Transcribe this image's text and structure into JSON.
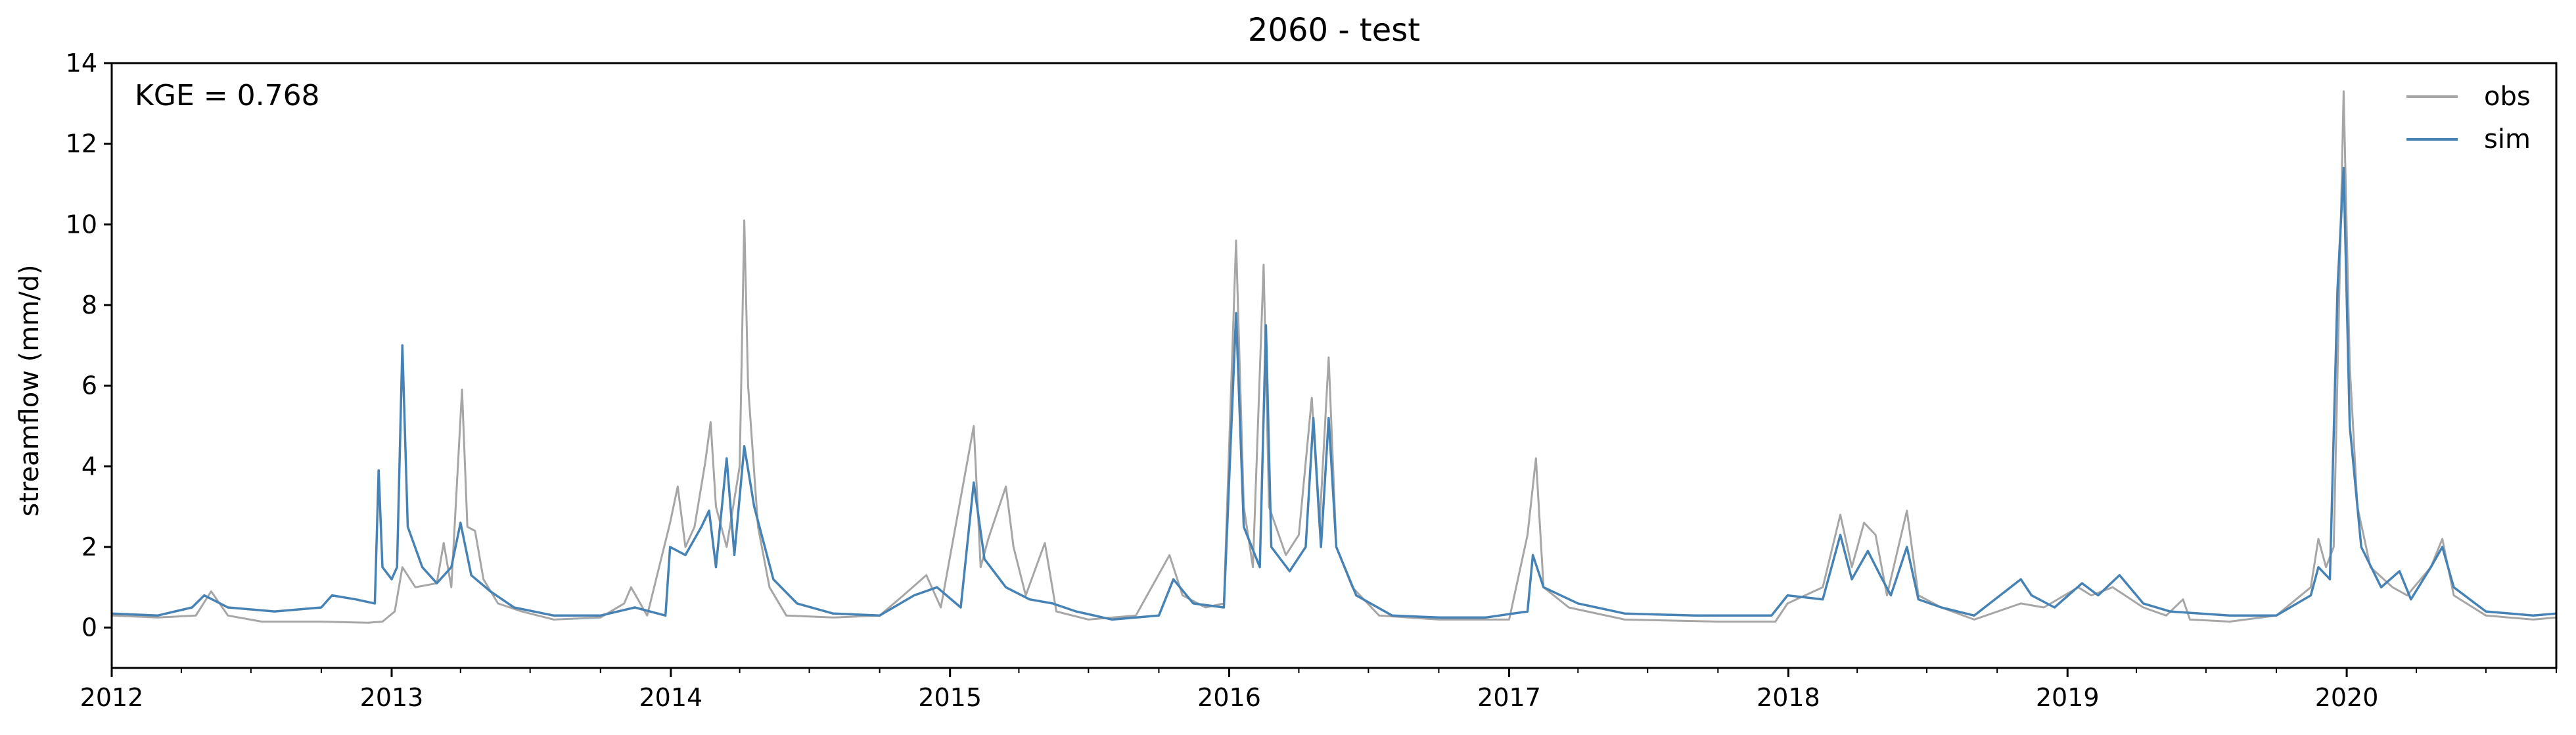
{
  "chart_data": {
    "type": "line",
    "title": "2060 - test",
    "xlabel": "",
    "ylabel": "streamflow (mm/d)",
    "xlim": [
      "2012-01-01",
      "2020-10-01"
    ],
    "ylim": [
      -1,
      14
    ],
    "x_ticks": [
      "2012",
      "2013",
      "2014",
      "2015",
      "2016",
      "2017",
      "2018",
      "2019",
      "2020"
    ],
    "y_ticks": [
      0,
      2,
      4,
      6,
      8,
      10,
      12,
      14
    ],
    "annotation": "KGE = 0.768",
    "legend_position": "top-right",
    "grid": false,
    "series": [
      {
        "name": "obs",
        "color": "#a6a6a6",
        "points": [
          [
            "2012-01-01",
            0.3
          ],
          [
            "2012-03-01",
            0.25
          ],
          [
            "2012-04-20",
            0.3
          ],
          [
            "2012-05-10",
            0.9
          ],
          [
            "2012-06-01",
            0.3
          ],
          [
            "2012-07-15",
            0.15
          ],
          [
            "2012-10-01",
            0.15
          ],
          [
            "2012-12-01",
            0.12
          ],
          [
            "2012-12-20",
            0.15
          ],
          [
            "2013-01-05",
            0.4
          ],
          [
            "2013-01-15",
            1.5
          ],
          [
            "2013-02-01",
            1.0
          ],
          [
            "2013-03-01",
            1.1
          ],
          [
            "2013-03-10",
            2.1
          ],
          [
            "2013-03-20",
            1.0
          ],
          [
            "2013-04-03",
            5.9
          ],
          [
            "2013-04-10",
            2.5
          ],
          [
            "2013-04-20",
            2.4
          ],
          [
            "2013-05-01",
            1.2
          ],
          [
            "2013-05-20",
            0.6
          ],
          [
            "2013-06-20",
            0.4
          ],
          [
            "2013-08-01",
            0.2
          ],
          [
            "2013-10-01",
            0.25
          ],
          [
            "2013-11-01",
            0.6
          ],
          [
            "2013-11-10",
            1.0
          ],
          [
            "2013-12-01",
            0.3
          ],
          [
            "2013-12-31",
            2.6
          ],
          [
            "2014-01-10",
            3.5
          ],
          [
            "2014-01-20",
            2.0
          ],
          [
            "2014-02-01",
            2.5
          ],
          [
            "2014-02-15",
            4.1
          ],
          [
            "2014-02-22",
            5.1
          ],
          [
            "2014-03-01",
            3.0
          ],
          [
            "2014-03-15",
            2.0
          ],
          [
            "2014-04-01",
            4.0
          ],
          [
            "2014-04-07",
            10.1
          ],
          [
            "2014-04-12",
            6.0
          ],
          [
            "2014-04-25",
            2.5
          ],
          [
            "2014-05-10",
            1.0
          ],
          [
            "2014-06-01",
            0.3
          ],
          [
            "2014-08-01",
            0.25
          ],
          [
            "2014-10-01",
            0.3
          ],
          [
            "2014-11-01",
            0.8
          ],
          [
            "2014-12-01",
            1.3
          ],
          [
            "2014-12-20",
            0.5
          ],
          [
            "2015-02-01",
            5.0
          ],
          [
            "2015-02-10",
            1.5
          ],
          [
            "2015-02-20",
            2.2
          ],
          [
            "2015-03-15",
            3.5
          ],
          [
            "2015-03-25",
            2.0
          ],
          [
            "2015-04-10",
            0.8
          ],
          [
            "2015-05-05",
            2.1
          ],
          [
            "2015-05-20",
            0.4
          ],
          [
            "2015-07-01",
            0.2
          ],
          [
            "2015-09-01",
            0.3
          ],
          [
            "2015-10-15",
            1.8
          ],
          [
            "2015-11-01",
            0.8
          ],
          [
            "2015-12-01",
            0.5
          ],
          [
            "2015-12-25",
            0.6
          ],
          [
            "2016-01-10",
            9.6
          ],
          [
            "2016-01-20",
            3.0
          ],
          [
            "2016-02-01",
            1.5
          ],
          [
            "2016-02-15",
            9.0
          ],
          [
            "2016-02-22",
            3.0
          ],
          [
            "2016-03-15",
            1.8
          ],
          [
            "2016-04-01",
            2.3
          ],
          [
            "2016-04-18",
            5.7
          ],
          [
            "2016-04-28",
            2.5
          ],
          [
            "2016-05-10",
            6.7
          ],
          [
            "2016-05-20",
            2.0
          ],
          [
            "2016-06-10",
            1.0
          ],
          [
            "2016-07-15",
            0.3
          ],
          [
            "2016-10-01",
            0.2
          ],
          [
            "2016-12-01",
            0.2
          ],
          [
            "2017-01-01",
            0.2
          ],
          [
            "2017-01-25",
            2.3
          ],
          [
            "2017-02-05",
            4.2
          ],
          [
            "2017-02-15",
            1.0
          ],
          [
            "2017-03-20",
            0.5
          ],
          [
            "2017-06-01",
            0.2
          ],
          [
            "2017-10-01",
            0.15
          ],
          [
            "2017-12-15",
            0.15
          ],
          [
            "2017-12-31",
            0.6
          ],
          [
            "2018-02-15",
            1.0
          ],
          [
            "2018-03-10",
            2.8
          ],
          [
            "2018-03-25",
            1.5
          ],
          [
            "2018-04-10",
            2.6
          ],
          [
            "2018-04-25",
            2.3
          ],
          [
            "2018-05-10",
            0.8
          ],
          [
            "2018-06-05",
            2.9
          ],
          [
            "2018-06-20",
            0.8
          ],
          [
            "2018-07-20",
            0.5
          ],
          [
            "2018-09-01",
            0.2
          ],
          [
            "2018-11-01",
            0.6
          ],
          [
            "2018-12-01",
            0.5
          ],
          [
            "2019-01-15",
            1.0
          ],
          [
            "2019-02-01",
            0.8
          ],
          [
            "2019-03-01",
            1.0
          ],
          [
            "2019-04-10",
            0.5
          ],
          [
            "2019-05-10",
            0.3
          ],
          [
            "2019-06-01",
            0.7
          ],
          [
            "2019-06-10",
            0.2
          ],
          [
            "2019-08-01",
            0.15
          ],
          [
            "2019-10-01",
            0.3
          ],
          [
            "2019-11-15",
            1.0
          ],
          [
            "2019-11-25",
            2.2
          ],
          [
            "2019-12-05",
            1.5
          ],
          [
            "2019-12-15",
            2.0
          ],
          [
            "2019-12-22",
            8.0
          ],
          [
            "2019-12-28",
            13.3
          ],
          [
            "2020-01-05",
            6.5
          ],
          [
            "2020-01-15",
            3.0
          ],
          [
            "2020-02-01",
            1.5
          ],
          [
            "2020-03-01",
            1.0
          ],
          [
            "2020-03-20",
            0.8
          ],
          [
            "2020-04-20",
            1.5
          ],
          [
            "2020-05-05",
            2.2
          ],
          [
            "2020-05-20",
            0.8
          ],
          [
            "2020-07-01",
            0.3
          ],
          [
            "2020-09-01",
            0.2
          ],
          [
            "2020-10-01",
            0.25
          ]
        ]
      },
      {
        "name": "sim",
        "color": "#4682b4",
        "points": [
          [
            "2012-01-01",
            0.35
          ],
          [
            "2012-03-01",
            0.3
          ],
          [
            "2012-04-15",
            0.5
          ],
          [
            "2012-05-01",
            0.8
          ],
          [
            "2012-06-01",
            0.5
          ],
          [
            "2012-08-01",
            0.4
          ],
          [
            "2012-10-01",
            0.5
          ],
          [
            "2012-10-15",
            0.8
          ],
          [
            "2012-11-15",
            0.7
          ],
          [
            "2012-12-10",
            0.6
          ],
          [
            "2012-12-15",
            3.9
          ],
          [
            "2012-12-20",
            1.5
          ],
          [
            "2013-01-01",
            1.2
          ],
          [
            "2013-01-08",
            1.5
          ],
          [
            "2013-01-15",
            7.0
          ],
          [
            "2013-01-22",
            2.5
          ],
          [
            "2013-02-10",
            1.5
          ],
          [
            "2013-03-01",
            1.1
          ],
          [
            "2013-03-20",
            1.5
          ],
          [
            "2013-04-01",
            2.6
          ],
          [
            "2013-04-15",
            1.3
          ],
          [
            "2013-05-10",
            0.9
          ],
          [
            "2013-06-10",
            0.5
          ],
          [
            "2013-08-01",
            0.3
          ],
          [
            "2013-10-01",
            0.3
          ],
          [
            "2013-11-15",
            0.5
          ],
          [
            "2013-12-25",
            0.3
          ],
          [
            "2013-12-31",
            2.0
          ],
          [
            "2014-01-20",
            1.8
          ],
          [
            "2014-02-10",
            2.5
          ],
          [
            "2014-02-20",
            2.9
          ],
          [
            "2014-03-01",
            1.5
          ],
          [
            "2014-03-15",
            4.2
          ],
          [
            "2014-03-25",
            1.8
          ],
          [
            "2014-04-07",
            4.5
          ],
          [
            "2014-04-20",
            3.0
          ],
          [
            "2014-05-15",
            1.2
          ],
          [
            "2014-06-15",
            0.6
          ],
          [
            "2014-08-01",
            0.35
          ],
          [
            "2014-10-01",
            0.3
          ],
          [
            "2014-11-15",
            0.8
          ],
          [
            "2014-12-15",
            1.0
          ],
          [
            "2015-01-15",
            0.5
          ],
          [
            "2015-02-01",
            3.6
          ],
          [
            "2015-02-15",
            1.7
          ],
          [
            "2015-03-15",
            1.0
          ],
          [
            "2015-04-15",
            0.7
          ],
          [
            "2015-05-15",
            0.6
          ],
          [
            "2015-06-15",
            0.4
          ],
          [
            "2015-08-01",
            0.2
          ],
          [
            "2015-10-01",
            0.3
          ],
          [
            "2015-10-20",
            1.2
          ],
          [
            "2015-11-15",
            0.6
          ],
          [
            "2015-12-25",
            0.5
          ],
          [
            "2016-01-10",
            7.8
          ],
          [
            "2016-01-20",
            2.5
          ],
          [
            "2016-02-10",
            1.5
          ],
          [
            "2016-02-18",
            7.5
          ],
          [
            "2016-02-25",
            2.0
          ],
          [
            "2016-03-20",
            1.4
          ],
          [
            "2016-04-10",
            2.0
          ],
          [
            "2016-04-20",
            5.2
          ],
          [
            "2016-04-30",
            2.0
          ],
          [
            "2016-05-10",
            5.2
          ],
          [
            "2016-05-20",
            2.0
          ],
          [
            "2016-06-15",
            0.8
          ],
          [
            "2016-08-01",
            0.3
          ],
          [
            "2016-10-01",
            0.25
          ],
          [
            "2016-12-01",
            0.25
          ],
          [
            "2017-01-25",
            0.4
          ],
          [
            "2017-02-01",
            1.8
          ],
          [
            "2017-02-15",
            1.0
          ],
          [
            "2017-04-01",
            0.6
          ],
          [
            "2017-06-01",
            0.35
          ],
          [
            "2017-09-01",
            0.3
          ],
          [
            "2017-12-10",
            0.3
          ],
          [
            "2017-12-31",
            0.8
          ],
          [
            "2018-02-15",
            0.7
          ],
          [
            "2018-03-10",
            2.3
          ],
          [
            "2018-03-25",
            1.2
          ],
          [
            "2018-04-15",
            1.9
          ],
          [
            "2018-05-01",
            1.3
          ],
          [
            "2018-05-15",
            0.8
          ],
          [
            "2018-06-05",
            2.0
          ],
          [
            "2018-06-20",
            0.7
          ],
          [
            "2018-07-20",
            0.5
          ],
          [
            "2018-09-01",
            0.3
          ],
          [
            "2018-11-01",
            1.2
          ],
          [
            "2018-11-15",
            0.8
          ],
          [
            "2018-12-15",
            0.5
          ],
          [
            "2019-01-20",
            1.1
          ],
          [
            "2019-02-10",
            0.8
          ],
          [
            "2019-03-10",
            1.3
          ],
          [
            "2019-04-10",
            0.6
          ],
          [
            "2019-05-15",
            0.4
          ],
          [
            "2019-08-01",
            0.3
          ],
          [
            "2019-10-01",
            0.3
          ],
          [
            "2019-11-15",
            0.8
          ],
          [
            "2019-11-25",
            1.5
          ],
          [
            "2019-12-10",
            1.2
          ],
          [
            "2019-12-20",
            8.4
          ],
          [
            "2019-12-28",
            11.4
          ],
          [
            "2020-01-05",
            5.0
          ],
          [
            "2020-01-20",
            2.0
          ],
          [
            "2020-02-15",
            1.0
          ],
          [
            "2020-03-10",
            1.4
          ],
          [
            "2020-03-25",
            0.7
          ],
          [
            "2020-04-20",
            1.5
          ],
          [
            "2020-05-05",
            2.0
          ],
          [
            "2020-05-20",
            1.0
          ],
          [
            "2020-07-01",
            0.4
          ],
          [
            "2020-09-01",
            0.3
          ],
          [
            "2020-10-01",
            0.35
          ]
        ]
      }
    ]
  }
}
